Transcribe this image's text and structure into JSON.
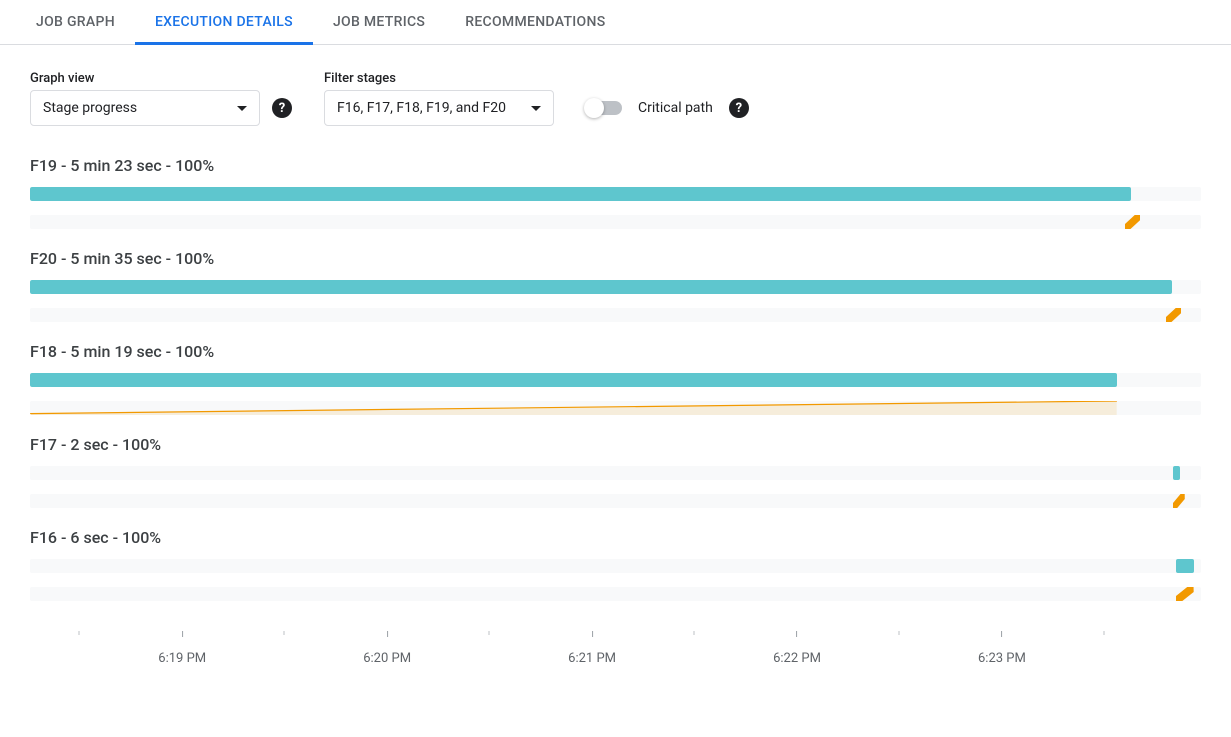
{
  "tabs": [
    {
      "label": "JOB GRAPH",
      "active": false
    },
    {
      "label": "EXECUTION DETAILS",
      "active": true
    },
    {
      "label": "JOB METRICS",
      "active": false
    },
    {
      "label": "RECOMMENDATIONS",
      "active": false
    }
  ],
  "controls": {
    "graph_view": {
      "label": "Graph view",
      "value": "Stage progress"
    },
    "filter_stages": {
      "label": "Filter stages",
      "value": "F16, F17, F18, F19, and F20"
    },
    "critical_path": {
      "label": "Critical path",
      "enabled": false
    }
  },
  "colors": {
    "bar_fill": "#5ec6ce",
    "bar_bg": "#f8f9fa",
    "line_orange": "#f29900",
    "area_orange": "rgba(242,153,0,0.12)"
  },
  "timeline": {
    "axis_start_pct": 0,
    "axis_end_pct": 100,
    "major_ticks": [
      {
        "pos": 13.0,
        "label": "6:19 PM"
      },
      {
        "pos": 30.5,
        "label": "6:20 PM"
      },
      {
        "pos": 48.0,
        "label": "6:21 PM"
      },
      {
        "pos": 65.5,
        "label": "6:22 PM"
      },
      {
        "pos": 83.0,
        "label": "6:23 PM"
      }
    ],
    "minor_ticks": [
      4.2,
      21.7,
      39.2,
      56.7,
      74.2,
      91.7
    ]
  },
  "stages": [
    {
      "id": "F19",
      "title": "F19 - 5 min 23 sec - 100%",
      "bars": [
        {
          "type": "fill",
          "start": 0.0,
          "end": 94.0
        },
        {
          "type": "line-tail",
          "start": 93.5,
          "end": 94.8
        }
      ]
    },
    {
      "id": "F20",
      "title": "F20 - 5 min 35 sec - 100%",
      "bars": [
        {
          "type": "fill",
          "start": 0.0,
          "end": 97.5
        },
        {
          "type": "line-tail",
          "start": 97.0,
          "end": 98.3
        }
      ]
    },
    {
      "id": "F18",
      "title": "F18 - 5 min 19 sec - 100%",
      "bars": [
        {
          "type": "fill",
          "start": 0.0,
          "end": 92.8
        },
        {
          "type": "area",
          "start": 0.0,
          "end": 92.8,
          "h0": 0.1,
          "h1": 1.0
        }
      ]
    },
    {
      "id": "F17",
      "title": "F17 - 2 sec - 100%",
      "bars": [
        {
          "type": "fill",
          "start": 97.6,
          "end": 98.2
        },
        {
          "type": "line-tail",
          "start": 97.6,
          "end": 98.6
        }
      ]
    },
    {
      "id": "F16",
      "title": "F16 - 6 sec - 100%",
      "bars": [
        {
          "type": "fill",
          "start": 97.9,
          "end": 99.4
        },
        {
          "type": "line-tail",
          "start": 97.9,
          "end": 99.4
        }
      ]
    }
  ]
}
